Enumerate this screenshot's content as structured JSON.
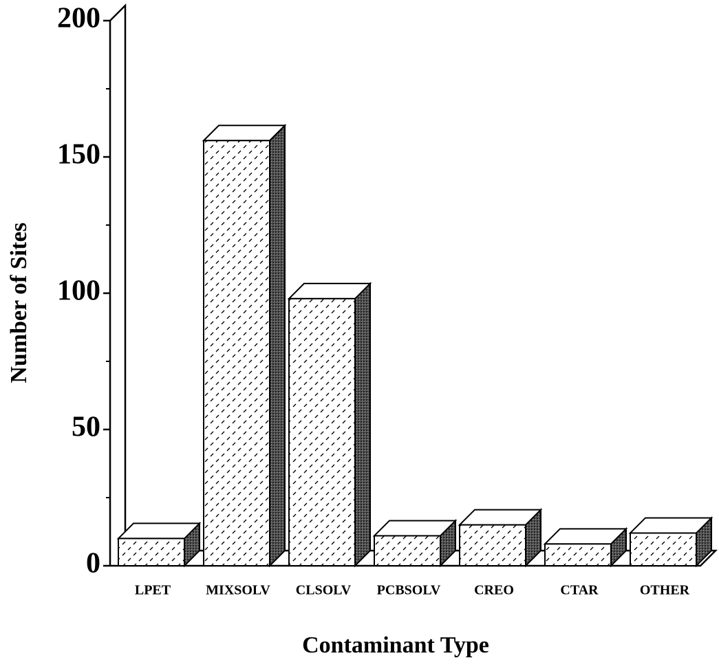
{
  "chart_data": {
    "type": "bar3d",
    "x_label": "Contaminant Type",
    "y_label": "Number of Sites",
    "categories": [
      "LPET",
      "MIXSOLV",
      "CLSOLV",
      "PCBSOLV",
      "CREO",
      "CTAR",
      "OTHER"
    ],
    "values": [
      10,
      156,
      98,
      11,
      15,
      8,
      12
    ],
    "ylim": [
      0,
      200
    ],
    "yticks": [
      0,
      50,
      100,
      150,
      200
    ],
    "yminorticks": [
      25,
      75,
      125,
      175
    ]
  }
}
